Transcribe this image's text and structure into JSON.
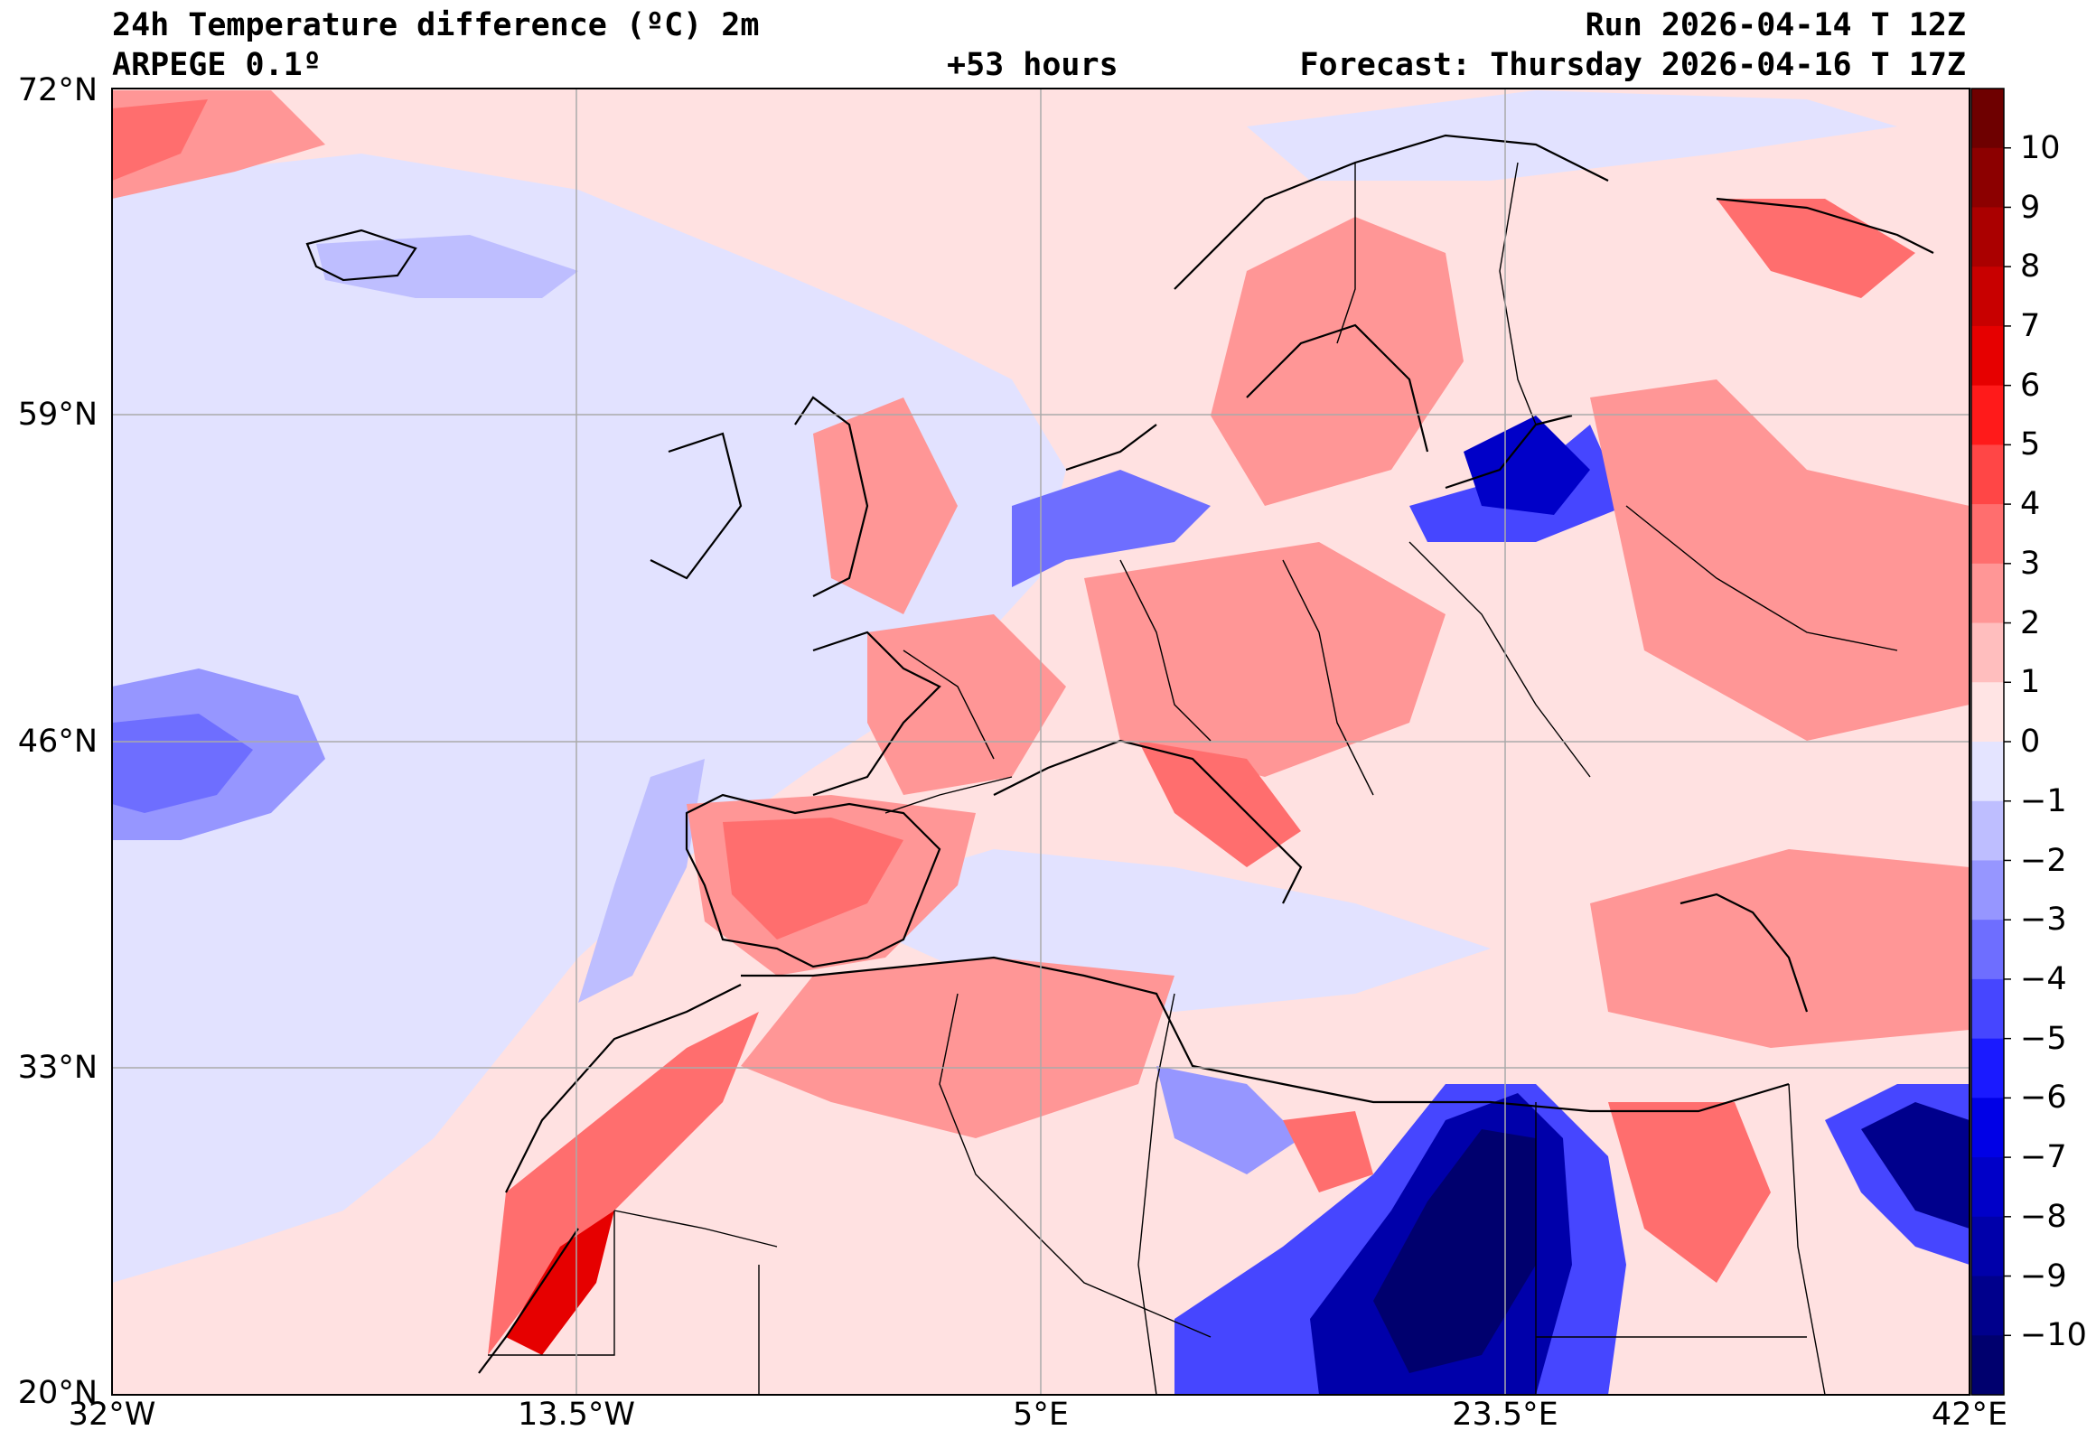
{
  "header": {
    "title": "24h Temperature difference (ºC) 2m",
    "model": "ARPEGE 0.1º",
    "lead": "+53 hours",
    "run": "Run 2026-04-14 T 12Z",
    "forecast": "Forecast: Thursday 2026-04-16 T 17Z"
  },
  "axes": {
    "lat_labels": [
      "72°N",
      "59°N",
      "46°N",
      "33°N",
      "20°N"
    ],
    "lon_labels": [
      "32°W",
      "13.5°W",
      "5°E",
      "23.5°E",
      "42°E"
    ]
  },
  "colorbar": {
    "labels": [
      "10",
      "9",
      "8",
      "7",
      "6",
      "5",
      "4",
      "3",
      "2",
      "1",
      "0",
      "−1",
      "−2",
      "−3",
      "−4",
      "−5",
      "−6",
      "−7",
      "−8",
      "−9",
      "−10"
    ],
    "colors": [
      "#6e0000",
      "#8c0000",
      "#aa0000",
      "#c80000",
      "#e60000",
      "#ff1a1a",
      "#ff4646",
      "#ff6e6e",
      "#ff9696",
      "#ffbebe",
      "#ffe4e4",
      "#e4e4ff",
      "#bebeff",
      "#9696ff",
      "#6e6eff",
      "#4646ff",
      "#1a1aff",
      "#0000e6",
      "#0000c8",
      "#0000aa",
      "#00008c",
      "#00006e"
    ]
  },
  "map": {
    "background_color": "#ffe1e1",
    "ocean_cool_color": "#e2e2ff",
    "projection": "equirectangular",
    "extent": {
      "lon_min": -32,
      "lon_max": 42,
      "lat_min": 20,
      "lat_max": 72
    }
  }
}
